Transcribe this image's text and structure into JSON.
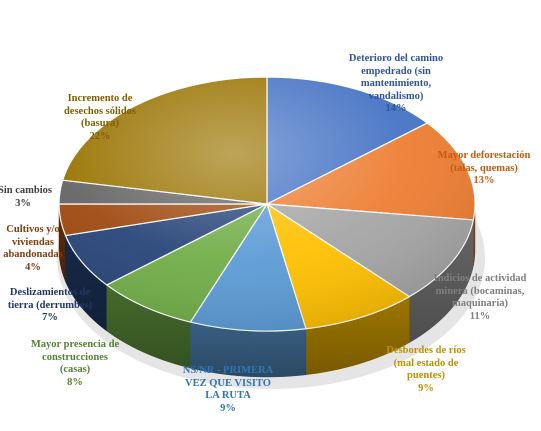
{
  "chart_data": {
    "type": "pie",
    "title": "",
    "legend": "none",
    "slices": [
      {
        "lines": [
          "Deterioro del camino",
          "empedrado (sin",
          "mantenimiento,",
          "vandalismo)"
        ],
        "pct": "14%",
        "value": 14,
        "color": "#4472C4"
      },
      {
        "lines": [
          "Mayor deforestación",
          "(talas, quemas)"
        ],
        "pct": "13%",
        "value": 13,
        "color": "#ED7D31"
      },
      {
        "lines": [
          "Indicios de actividad",
          "minera (bocaminas,",
          "maquinaria)"
        ],
        "pct": "11%",
        "value": 11,
        "color": "#A5A5A5"
      },
      {
        "lines": [
          "Desbordes de ríos",
          "(mal estado de",
          "puentes)"
        ],
        "pct": "9%",
        "value": 9,
        "color": "#FFC000"
      },
      {
        "lines": [
          "NS/NR - PRIMERA",
          "VEZ QUE VISITO",
          "LA RUTA"
        ],
        "pct": "9%",
        "value": 9,
        "color": "#5B9BD5"
      },
      {
        "lines": [
          "Mayor presencia de",
          "construcciones",
          "(casas)"
        ],
        "pct": "8%",
        "value": 8,
        "color": "#70AD47"
      },
      {
        "lines": [
          "Deslizamientos de",
          "tierra (derrumbes)"
        ],
        "pct": "7%",
        "value": 7,
        "color": "#264478"
      },
      {
        "lines": [
          "Cultivos y/o",
          "viviendas",
          "abandonadas"
        ],
        "pct": "4%",
        "value": 4,
        "color": "#9E480E"
      },
      {
        "lines": [
          "Sin cambios"
        ],
        "pct": "3%",
        "value": 3,
        "color": "#636363"
      },
      {
        "lines": [
          "Incremento de",
          "desechos sólidos",
          "(basura)"
        ],
        "pct": "22%",
        "value": 22,
        "color": "#997300"
      }
    ]
  }
}
